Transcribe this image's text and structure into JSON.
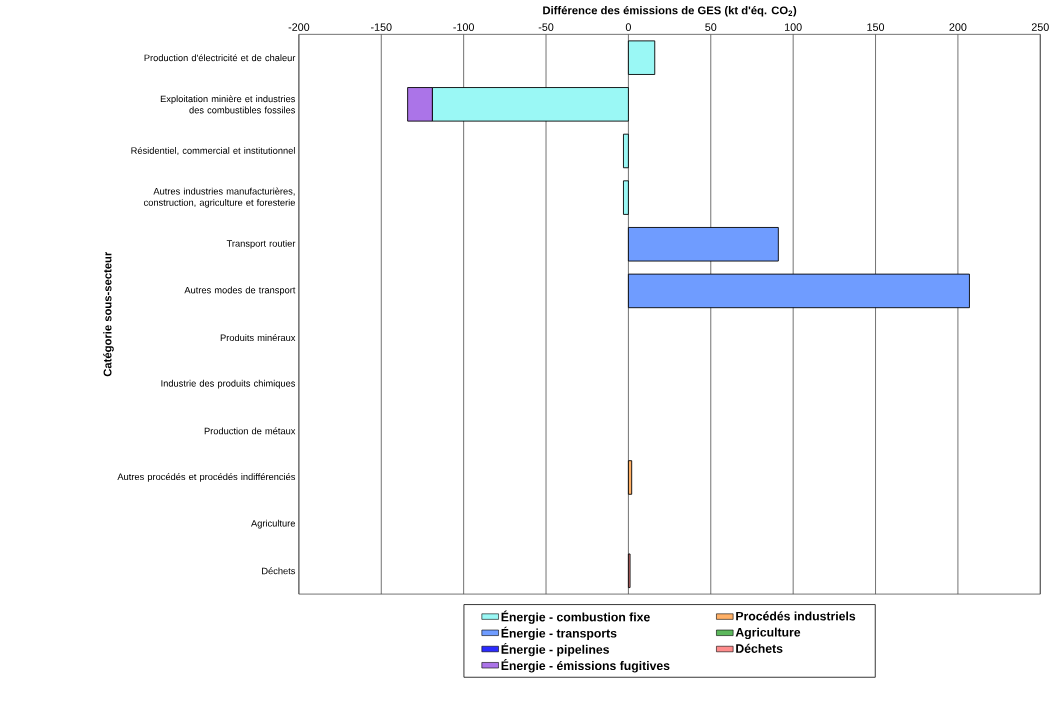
{
  "chart_data": {
    "type": "bar",
    "orientation": "horizontal",
    "stacked": true,
    "xlabel": "Différence des émissions de GES (kt d'éq. CO$_{2}$)",
    "ylabel": "Catégorie sous-secteur",
    "categories": [
      "Production d'électricité et de chaleur",
      "Exploitation minière et industries des combustibles fossiles",
      "Résidentiel, commercial et institutionnel",
      "Autres industries manufacturières, construction, agriculture et foresterie",
      "Transport routier",
      "Autres modes de transport",
      "Produits minéraux",
      "Industrie des produits chimiques",
      "Production de métaux",
      "Autres procédés et procédés indifférenciés",
      "Agriculture",
      "Déchets"
    ],
    "series": [
      {
        "name": "Énergie - combustion fixe",
        "color": "#9af8f5",
        "values": [
          16,
          -119,
          -3,
          -3,
          null,
          null,
          null,
          null,
          null,
          null,
          null,
          null
        ]
      },
      {
        "name": "Énergie - transports",
        "color": "#6f9cff",
        "values": [
          null,
          null,
          null,
          null,
          91,
          207,
          null,
          null,
          null,
          null,
          null,
          null
        ]
      },
      {
        "name": "Énergie - pipelines",
        "color": "#2b2bff",
        "values": [
          null,
          null,
          null,
          null,
          null,
          null,
          null,
          null,
          null,
          null,
          null,
          null
        ]
      },
      {
        "name": "Énergie - émissions fugitives",
        "color": "#ab74e8",
        "values": [
          null,
          -15,
          null,
          null,
          null,
          null,
          null,
          null,
          null,
          null,
          null,
          null
        ]
      },
      {
        "name": "Procédés industriels",
        "color": "#ffb066",
        "values": [
          null,
          null,
          null,
          null,
          null,
          null,
          null,
          null,
          null,
          2,
          null,
          null
        ]
      },
      {
        "name": "Agriculture",
        "color": "#5cb85c",
        "values": [
          null,
          null,
          null,
          null,
          null,
          null,
          null,
          null,
          null,
          null,
          null,
          null
        ]
      },
      {
        "name": "Déchets",
        "color": "#ff8c8c",
        "values": [
          null,
          null,
          null,
          null,
          null,
          null,
          null,
          null,
          null,
          null,
          null,
          1
        ]
      }
    ],
    "xlim": [
      -200,
      250
    ],
    "xticks": [
      -200,
      -150,
      -100,
      -50,
      0,
      50,
      100,
      150,
      200,
      250
    ],
    "grid": "x",
    "legend": "bottom"
  }
}
